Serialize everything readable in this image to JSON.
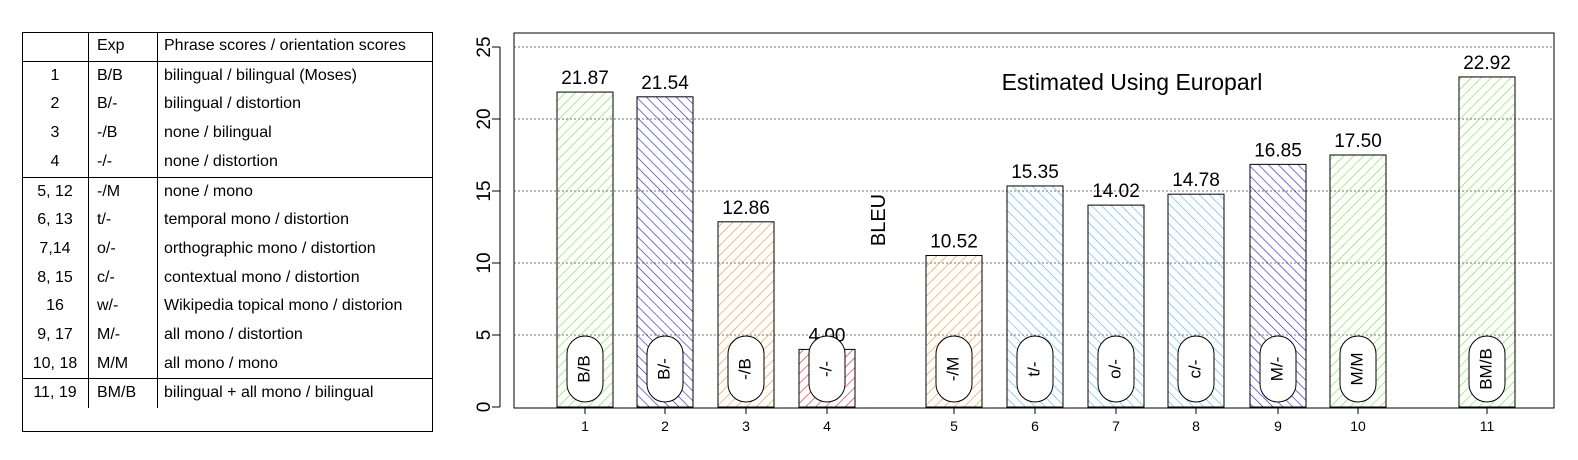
{
  "table": {
    "headers": [
      "",
      "Exp",
      "Phrase scores / orientation scores"
    ],
    "groups": [
      [
        [
          "1",
          "B/B",
          "bilingual / bilingual (Moses)"
        ],
        [
          "2",
          "B/-",
          "bilingual / distortion"
        ],
        [
          "3",
          "-/B",
          "none / bilingual"
        ],
        [
          "4",
          "-/-",
          "none / distortion"
        ]
      ],
      [
        [
          "5, 12",
          "-/M",
          "none / mono"
        ],
        [
          "6, 13",
          "t/-",
          "temporal mono / distortion"
        ],
        [
          "7,14",
          "o/-",
          "orthographic mono / distortion"
        ],
        [
          "8, 15",
          "c/-",
          "contextual mono / distortion"
        ],
        [
          "16",
          "w/-",
          "Wikipedia topical mono / distorion"
        ],
        [
          "9, 17",
          "M/-",
          "all mono / distortion"
        ],
        [
          "10, 18",
          "M/M",
          "all mono / mono"
        ]
      ],
      [
        [
          "11, 19",
          "BM/B",
          "bilingual + all mono / bilingual"
        ]
      ]
    ]
  },
  "chart_data": {
    "type": "bar",
    "title": "Estimated Using Europarl",
    "xlabel": "",
    "ylabel": "BLEU",
    "ylim": [
      0,
      25
    ],
    "yticks": [
      0,
      5,
      10,
      15,
      20,
      25
    ],
    "grid": true,
    "categories": [
      "1",
      "2",
      "3",
      "4",
      "5",
      "6",
      "7",
      "8",
      "9",
      "10",
      "11"
    ],
    "values": [
      21.87,
      21.54,
      12.86,
      4.0,
      10.52,
      15.35,
      14.02,
      14.78,
      16.85,
      17.5,
      22.92
    ],
    "value_labels": [
      "21.87",
      "21.54",
      "12.86",
      "4.00",
      "10.52",
      "15.35",
      "14.02",
      "14.78",
      "16.85",
      "17.50",
      "22.92"
    ],
    "bar_labels": [
      "B/B",
      "B/-",
      "-/B",
      "-/-",
      "-/M",
      "t/-",
      "o/-",
      "c/-",
      "M/-",
      "M/M",
      "BM/B"
    ],
    "colors": [
      "#7fe34f",
      "#2a2ad0",
      "#f29a35",
      "#e0303a",
      "#f29a35",
      "#5fb8ee",
      "#5fb8ee",
      "#5fb8ee",
      "#2a2ad0",
      "#7fe34f",
      "#7fe34f"
    ]
  }
}
